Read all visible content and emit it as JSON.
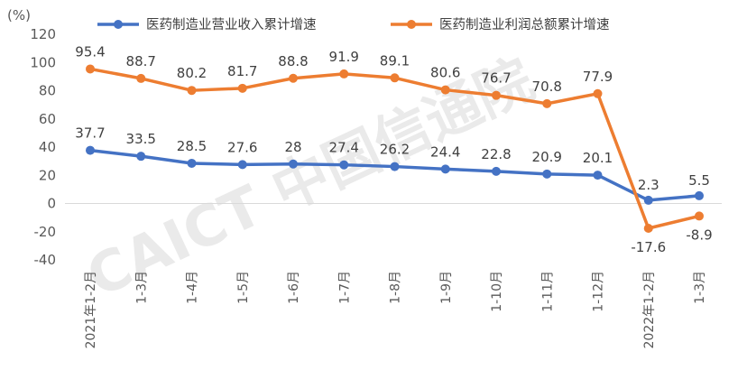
{
  "chart_data": {
    "type": "line",
    "unit_label": "(%)",
    "categories": [
      "2021年1-2月",
      "1-3月",
      "1-4月",
      "1-5月",
      "1-6月",
      "1-7月",
      "1-8月",
      "1-9月",
      "1-10月",
      "1-11月",
      "1-12月",
      "2022年1-2月",
      "1-3月"
    ],
    "ylim": [
      -40,
      120
    ],
    "yticks": [
      -40,
      -20,
      0,
      20,
      40,
      60,
      80,
      100,
      120
    ],
    "grid": false,
    "legend_position": "top",
    "series": [
      {
        "name": "医药制造业营业收入累计增速",
        "color": "#4472c4",
        "values": [
          37.7,
          33.5,
          28.5,
          27.6,
          28,
          27.4,
          26.2,
          24.4,
          22.8,
          20.9,
          20.1,
          2.3,
          5.5
        ],
        "labels": [
          "37.7",
          "33.5",
          "28.5",
          "27.6",
          "28",
          "27.4",
          "26.2",
          "24.4",
          "22.8",
          "20.9",
          "20.1",
          "2.3",
          "5.5"
        ]
      },
      {
        "name": "医药制造业利润总额累计增速",
        "color": "#ed7d31",
        "values": [
          95.4,
          88.7,
          80.2,
          81.7,
          88.8,
          91.9,
          89.1,
          80.6,
          76.7,
          70.8,
          77.9,
          -17.6,
          -8.9
        ],
        "labels": [
          "95.4",
          "88.7",
          "80.2",
          "81.7",
          "88.8",
          "91.9",
          "89.1",
          "80.6",
          "76.7",
          "70.8",
          "77.9",
          "-17.6",
          "-8.9"
        ]
      }
    ],
    "watermark": "CAICT 中国信通院"
  }
}
